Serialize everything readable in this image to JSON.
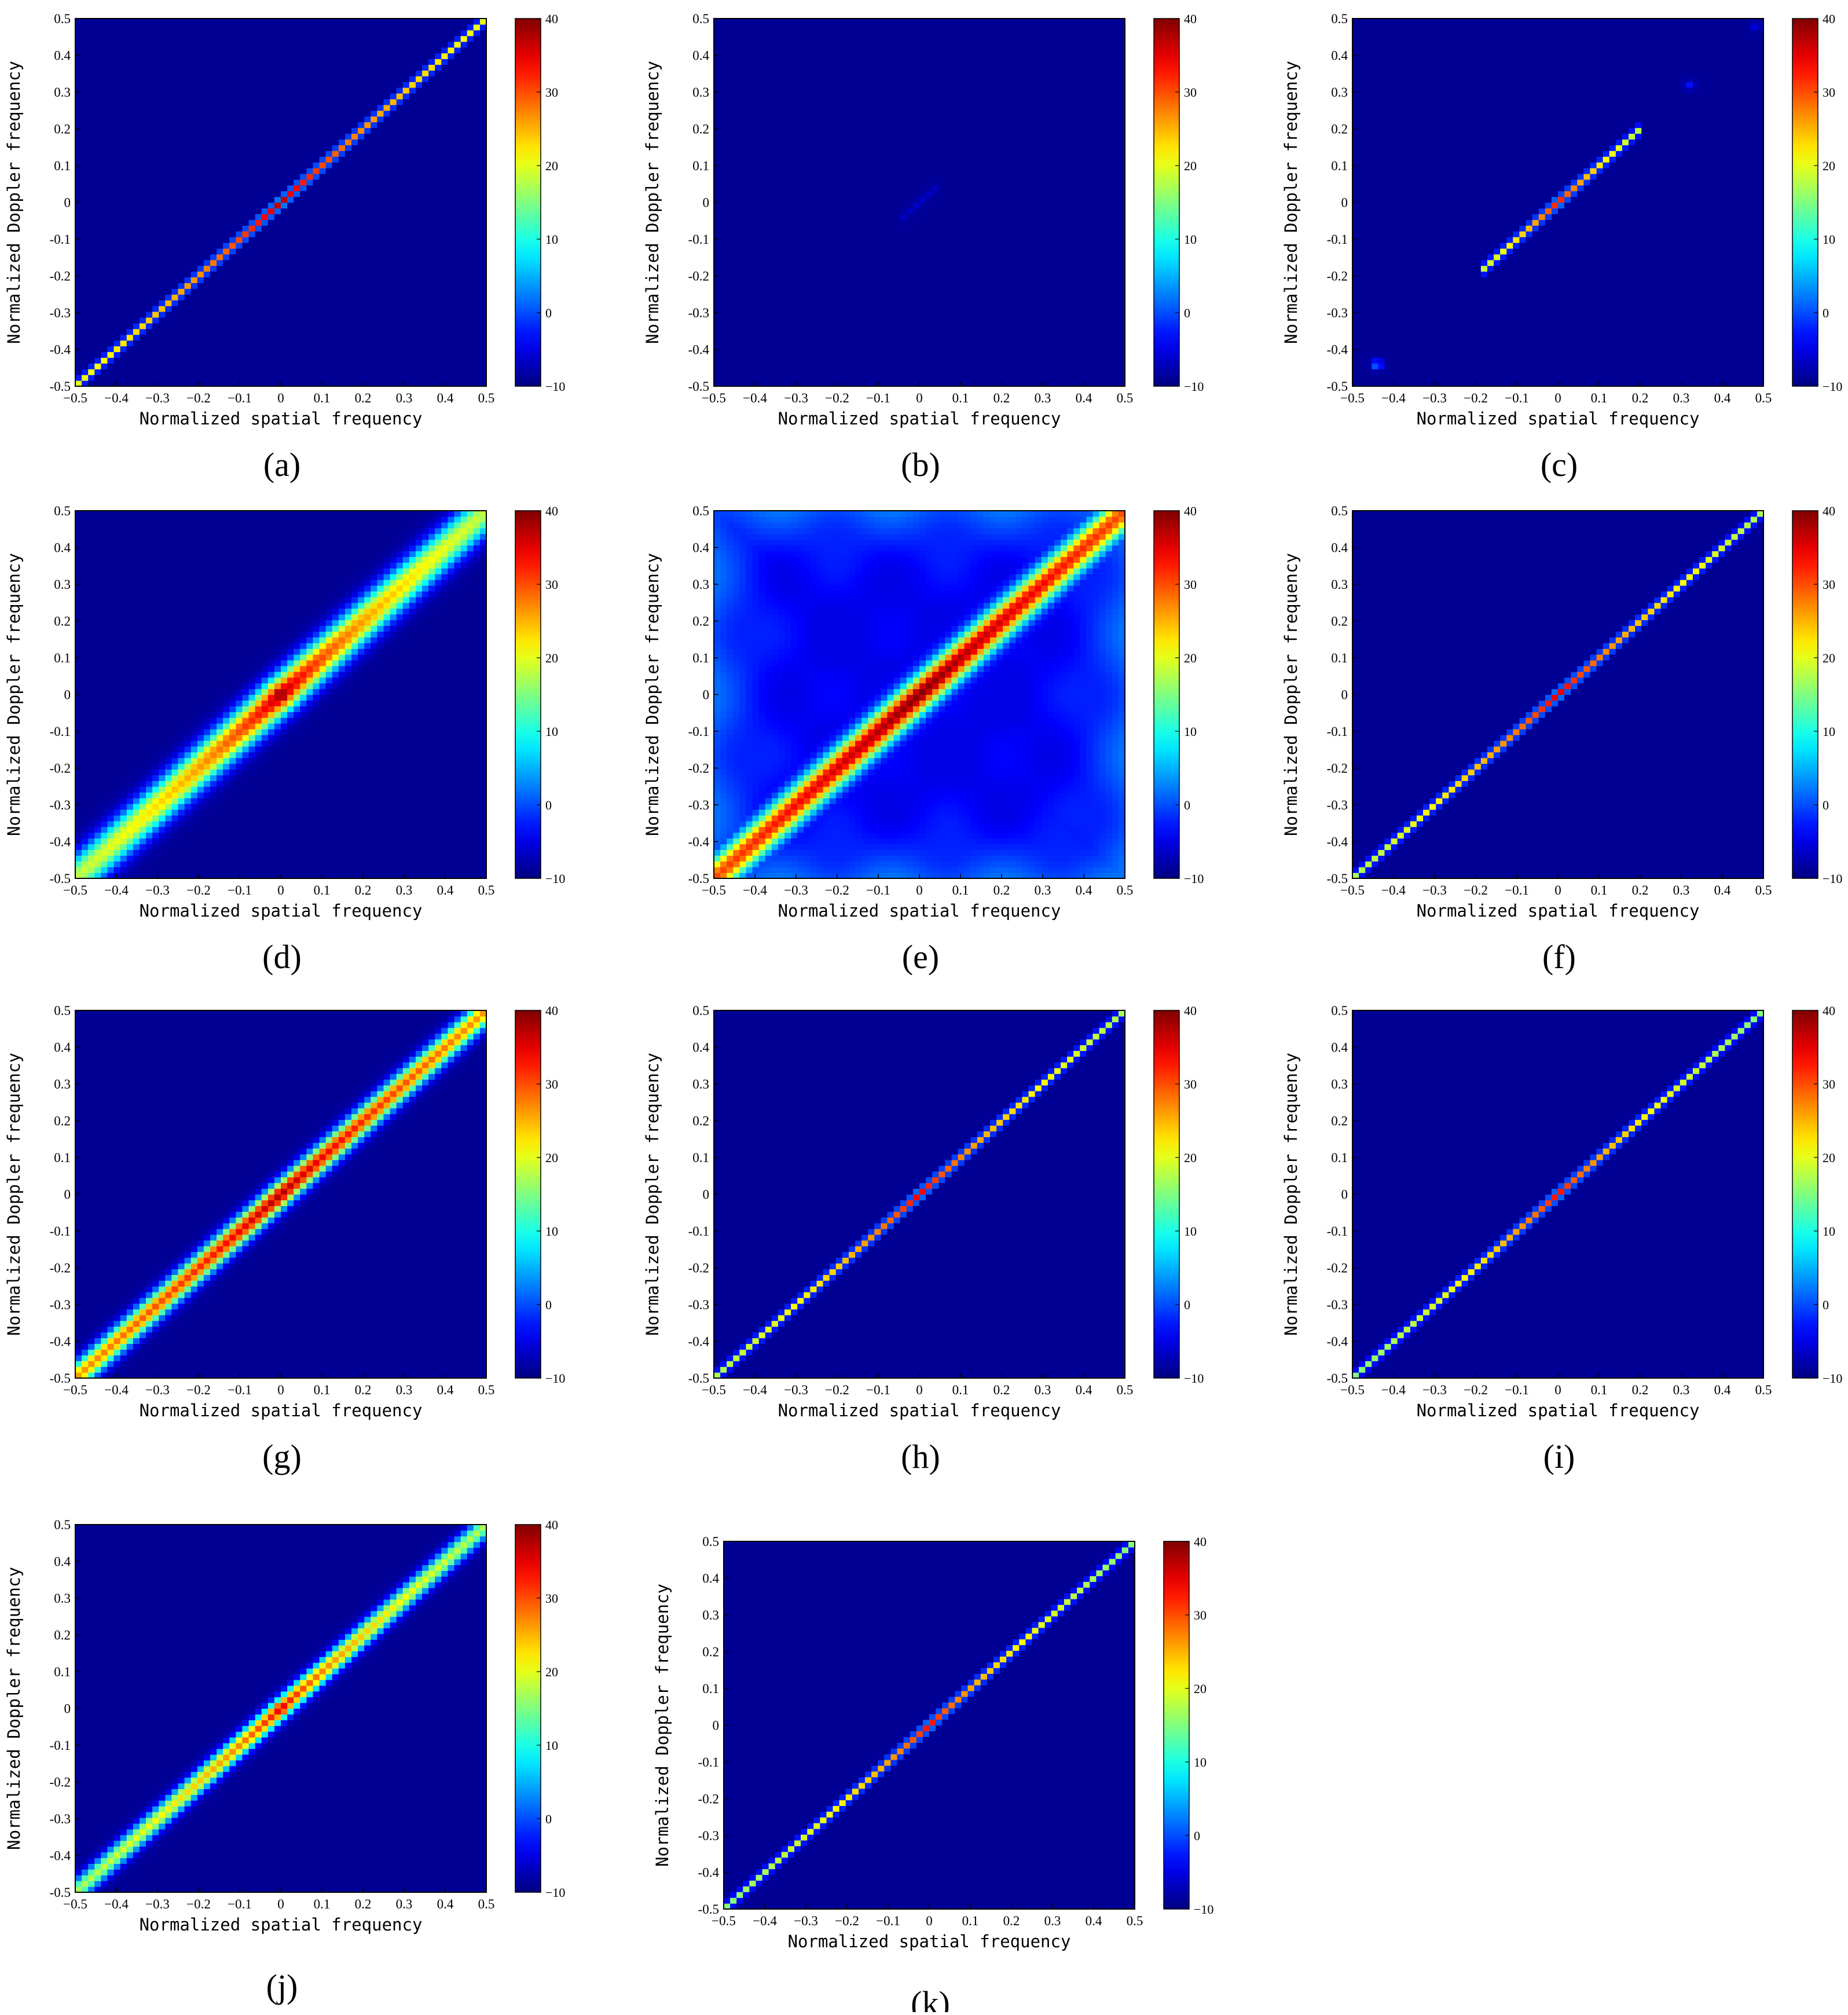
{
  "colorbar": {
    "min": -10,
    "max": 40,
    "ticks": [
      40,
      30,
      20,
      10,
      0,
      -10
    ]
  },
  "axes": {
    "xlabel": "Normalized spatial frequency",
    "ylabel": "Normalized Doppler frequency",
    "xlim": [
      -0.5,
      0.5
    ],
    "ylim": [
      -0.5,
      0.5
    ],
    "xticks": [
      "−0.5",
      "−0.4",
      "−0.3",
      "−0.2",
      "−0.1",
      "0",
      "0.1",
      "0.2",
      "0.3",
      "0.4",
      "0.5"
    ],
    "yticks": [
      "0.5",
      "0.4",
      "0.3",
      "0.2",
      "0.1",
      "0",
      "-0.1",
      "-0.2",
      "-0.3",
      "-0.4",
      "-0.5"
    ]
  },
  "chart_data": [
    {
      "label": "(a)",
      "type": "heatmap",
      "ridge_peak": 40,
      "ridge_end": 20,
      "ridge_sharpness": 0.45,
      "background": -9,
      "ridge_extent": [
        -0.5,
        0.5
      ],
      "spread": 0.0,
      "outliers": []
    },
    {
      "label": "(b)",
      "type": "heatmap",
      "ridge_peak": -6,
      "ridge_end": -9,
      "ridge_sharpness": 0.5,
      "background": -9,
      "ridge_extent": [
        -0.04,
        0.04
      ],
      "spread": 0.0,
      "outliers": []
    },
    {
      "label": "(c)",
      "type": "heatmap",
      "ridge_peak": 36,
      "ridge_end": 8,
      "ridge_sharpness": 0.45,
      "background": -9,
      "ridge_extent": [
        -0.18,
        0.2
      ],
      "spread": 0.0,
      "outliers": [
        {
          "x": -0.44,
          "y": -0.44,
          "v": 4
        },
        {
          "x": 0.32,
          "y": 0.32,
          "v": -3
        },
        {
          "x": 0.48,
          "y": 0.48,
          "v": -5
        }
      ]
    },
    {
      "label": "(d)",
      "type": "heatmap",
      "ridge_peak": 40,
      "ridge_end": 18,
      "ridge_sharpness": 0.5,
      "background": -9,
      "ridge_extent": [
        -0.5,
        0.5
      ],
      "spread": 0.035,
      "outliers": []
    },
    {
      "label": "(e)",
      "type": "heatmap",
      "ridge_peak": 40,
      "ridge_end": 30,
      "ridge_sharpness": 0.9,
      "background": -5,
      "ridge_extent": [
        -0.5,
        0.5
      ],
      "spread": 0.03,
      "outliers": []
    },
    {
      "label": "(f)",
      "type": "heatmap",
      "ridge_peak": 38,
      "ridge_end": 17,
      "ridge_sharpness": 0.45,
      "background": -9,
      "ridge_extent": [
        -0.5,
        0.5
      ],
      "spread": 0.0,
      "outliers": []
    },
    {
      "label": "(g)",
      "type": "heatmap",
      "ridge_peak": 38,
      "ridge_end": 26,
      "ridge_sharpness": 0.7,
      "background": -9,
      "ridge_extent": [
        -0.5,
        0.5
      ],
      "spread": 0.02,
      "outliers": []
    },
    {
      "label": "(h)",
      "type": "heatmap",
      "ridge_peak": 37,
      "ridge_end": 17,
      "ridge_sharpness": 0.45,
      "background": -9,
      "ridge_extent": [
        -0.5,
        0.5
      ],
      "spread": 0.0,
      "outliers": []
    },
    {
      "label": "(i)",
      "type": "heatmap",
      "ridge_peak": 36,
      "ridge_end": 15,
      "ridge_sharpness": 0.45,
      "background": -9,
      "ridge_extent": [
        -0.5,
        0.5
      ],
      "spread": 0.0,
      "outliers": []
    },
    {
      "label": "(j)",
      "type": "heatmap",
      "ridge_peak": 37,
      "ridge_end": 17,
      "ridge_sharpness": 0.45,
      "background": -9,
      "ridge_extent": [
        -0.5,
        0.5
      ],
      "spread": 0.015,
      "outliers": []
    },
    {
      "label": "(k)",
      "type": "heatmap",
      "ridge_peak": 36,
      "ridge_end": 15,
      "ridge_sharpness": 0.45,
      "background": -9,
      "ridge_extent": [
        -0.5,
        0.5
      ],
      "spread": 0.0,
      "outliers": []
    }
  ]
}
